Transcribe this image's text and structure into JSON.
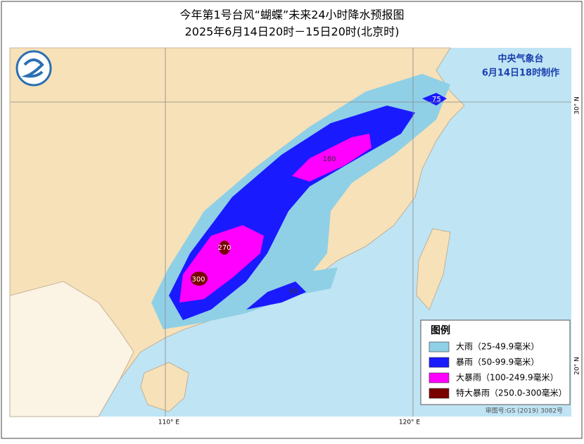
{
  "header": {
    "title": "今年第1号台风“蝴蝶”未来24小时降水预报图",
    "subtitle": "2025年6月14日20时－15日20时(北京时)"
  },
  "agency": {
    "name": "中央气象台",
    "time": "6月14日18时制作"
  },
  "map": {
    "labels": [
      "75",
      "180",
      "270",
      "300",
      "90"
    ],
    "coords": {
      "lat30": "30° N",
      "lat20": "20° N",
      "lon110": "110° E",
      "lon120": "120° E"
    },
    "review": "审图号:GS (2019) 3082号"
  },
  "legend": {
    "title": "图例",
    "items": [
      {
        "label": "大雨（25-49.9毫米）",
        "color": "#8fd0e6"
      },
      {
        "label": "暴雨（50-99.9毫米）",
        "color": "#1a1aff"
      },
      {
        "label": "大暴雨（100-249.9毫米）",
        "color": "#ff00ff"
      },
      {
        "label": "特大暴雨（250.0-300毫米）",
        "color": "#7a0000"
      }
    ]
  }
}
